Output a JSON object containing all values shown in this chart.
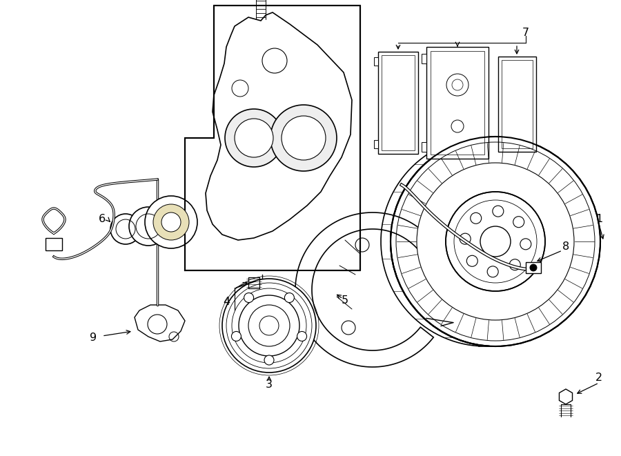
{
  "bg_color": "#ffffff",
  "fig_width": 9.0,
  "fig_height": 6.61,
  "lw": 1.0
}
